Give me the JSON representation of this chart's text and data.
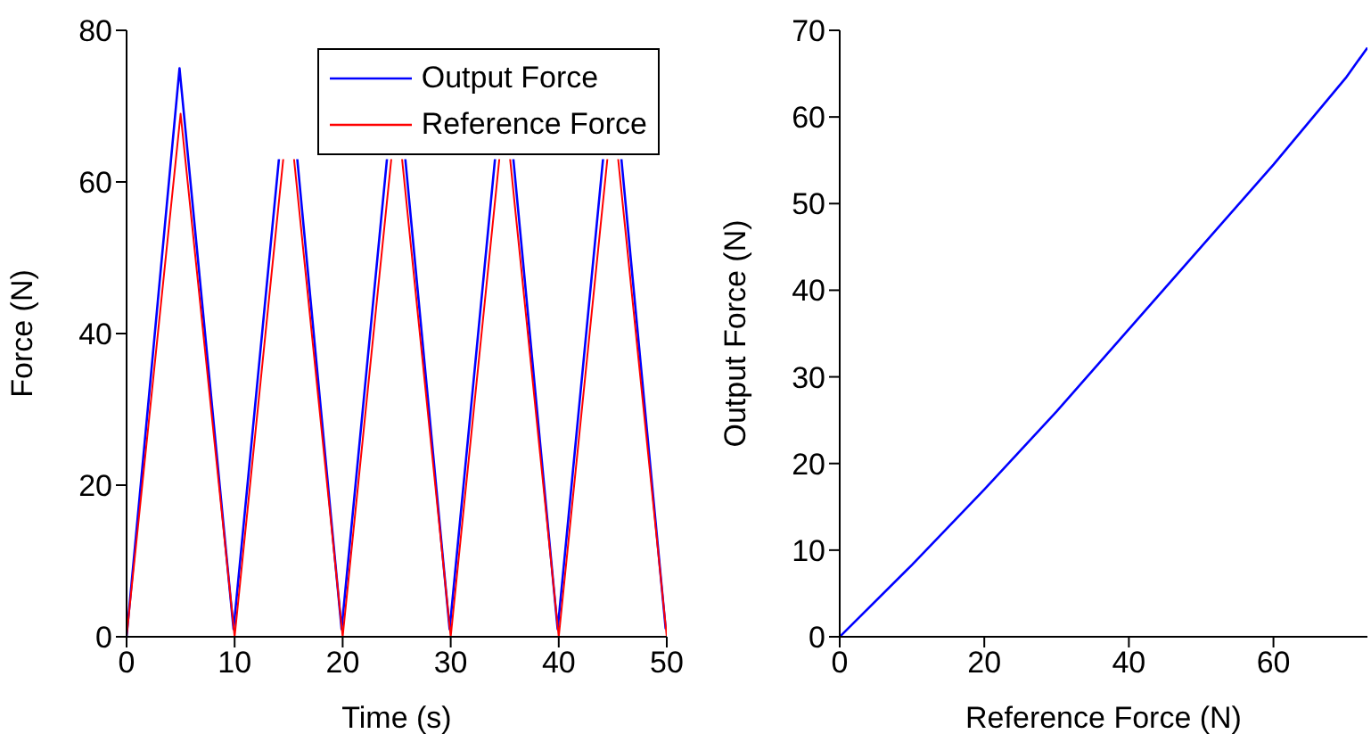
{
  "chart_data": [
    {
      "type": "line",
      "xlabel": "Time (s)",
      "ylabel": "Force (N)",
      "xlim": [
        0,
        50
      ],
      "xticks": [
        0,
        10,
        20,
        30,
        40,
        50
      ],
      "ylim": [
        0,
        80
      ],
      "yticks": [
        0,
        20,
        40,
        60,
        80
      ],
      "grid": false,
      "legend": "top right",
      "series": [
        {
          "name": "Output Force",
          "color": "#0000ff",
          "x": [
            0,
            4.9,
            9.9,
            14.1,
            15,
            15.8,
            19.9,
            24.1,
            25,
            25.8,
            29.9,
            34.1,
            35,
            35.8,
            39.9,
            44.1,
            45,
            45.8,
            49.9
          ],
          "values": [
            0,
            75,
            1,
            63,
            null,
            63,
            1,
            63,
            null,
            63,
            1,
            63,
            null,
            63,
            1,
            63,
            null,
            63,
            1
          ]
        },
        {
          "name": "Reference Force",
          "color": "#ff0000",
          "x": [
            0,
            5,
            10,
            14.5,
            15,
            15.5,
            20,
            24.5,
            25,
            25.5,
            30,
            34.5,
            35,
            35.5,
            40,
            44.5,
            45,
            45.5,
            50
          ],
          "values": [
            0,
            69,
            0,
            63,
            null,
            63,
            0,
            63,
            null,
            63,
            0,
            63,
            null,
            63,
            0,
            63,
            null,
            63,
            0
          ]
        }
      ]
    },
    {
      "type": "line",
      "xlabel": "Reference Force (N)",
      "ylabel": "Output Force (N)",
      "xlim": [
        0,
        73
      ],
      "xticks": [
        0,
        20,
        40,
        60
      ],
      "ylim": [
        0,
        70
      ],
      "yticks": [
        0,
        10,
        20,
        30,
        40,
        50,
        60,
        70
      ],
      "grid": false,
      "series": [
        {
          "color": "#0000ff",
          "x": [
            0,
            10,
            20,
            30,
            40,
            50,
            60,
            70,
            73
          ],
          "values": [
            0,
            8.3,
            17,
            26,
            35.5,
            45,
            54.5,
            64.5,
            68
          ]
        }
      ]
    }
  ]
}
